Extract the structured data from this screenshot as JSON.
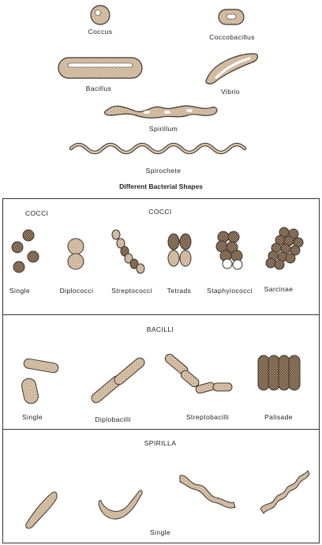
{
  "top": {
    "labels": {
      "coccus": "Coccus",
      "coccobacillus": "Coccobacillus",
      "bacillus": "Bacillus",
      "vibrio": "Vibrio",
      "spirillum": "Spirillum",
      "spirochete": "Spirochete"
    },
    "title": "Different Bacterial Shapes"
  },
  "cocci": {
    "corner_label": "COCCI",
    "heading": "COCCI",
    "labels": {
      "single": "Single",
      "diplococci": "Diplococci",
      "streptococci": "Streptococci",
      "tetrads": "Tetrads",
      "staphylococci": "Staphyiococci",
      "sarcinae": "Sarcinae"
    }
  },
  "bacilli": {
    "heading": "BACILLI",
    "labels": {
      "single": "Single",
      "diplobacilli": "Diplobacilli",
      "streptobacilli": "Streptobacilli",
      "palisade": "Palisade"
    }
  },
  "spirilla": {
    "heading": "SPIRILLA",
    "labels": {
      "single": "Single"
    }
  },
  "colors": {
    "fill": "#d9c3a8",
    "stroke": "#3a3530",
    "dots": "#7a6048"
  }
}
